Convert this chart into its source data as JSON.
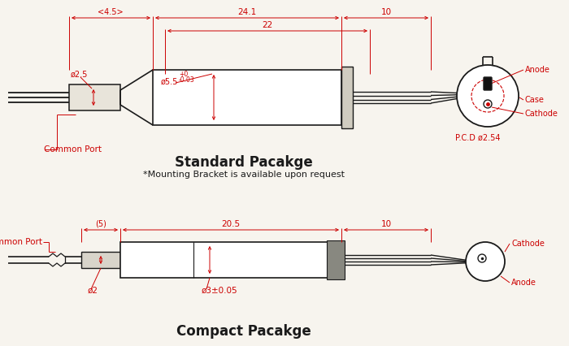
{
  "bg_color": "#f7f4ee",
  "draw_color": "#1a1a1a",
  "red_color": "#cc0000",
  "title_standard": "Standard Pacakge",
  "title_compact": "Compact Pacakge",
  "subtitle": "*Mounting Bracket is available upon request"
}
